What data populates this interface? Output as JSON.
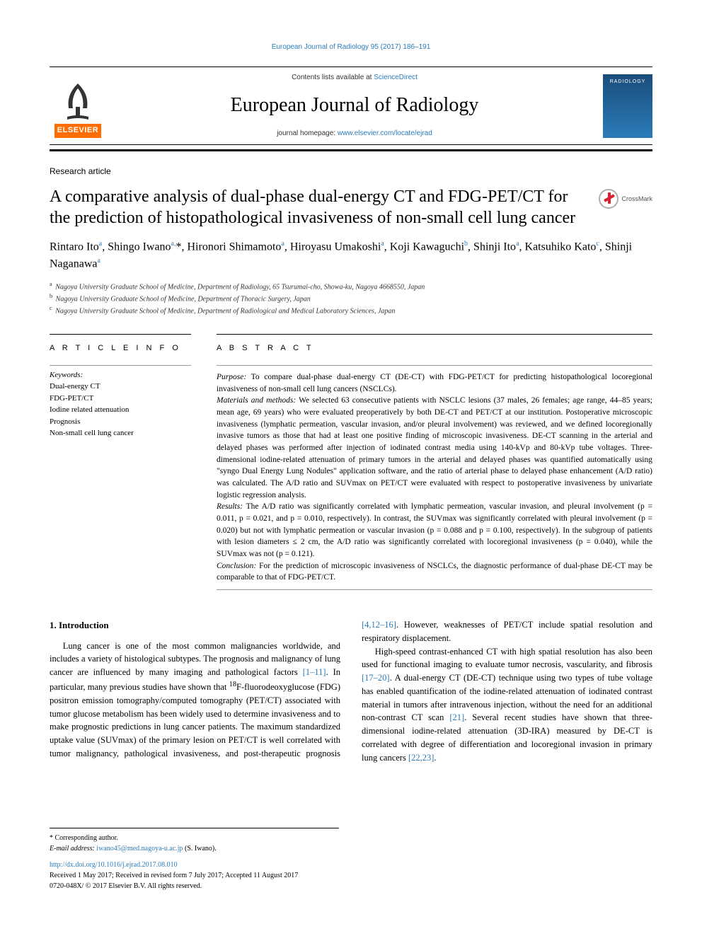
{
  "running_head": "European Journal of Radiology 95 (2017) 186–191",
  "masthead": {
    "contents_line_prefix": "Contents lists available at ",
    "contents_link": "ScienceDirect",
    "journal_name": "European Journal of Radiology",
    "homepage_prefix": "journal homepage: ",
    "homepage_link": "www.elsevier.com/locate/ejrad",
    "elsevier": "ELSEVIER",
    "cover_label": "RADIOLOGY"
  },
  "article_type": "Research article",
  "title": "A comparative analysis of dual-phase dual-energy CT and FDG-PET/CT for the prediction of histopathological invasiveness of non-small cell lung cancer",
  "crossmark_label": "CrossMark",
  "authors_html": "Rintaro Ito<sup>a</sup>, Shingo Iwano<sup>a,</sup>*, Hironori Shimamoto<sup>a</sup>, Hiroyasu Umakoshi<sup>a</sup>, Koji Kawaguchi<sup>b</sup>, Shinji Ito<sup>a</sup>, Katsuhiko Kato<sup>c</sup>, Shinji Naganawa<sup>a</sup>",
  "affiliations": {
    "a": "Nagoya University Graduate School of Medicine, Department of Radiology, 65 Tsurumai-cho, Showa-ku, Nagoya 4668550, Japan",
    "b": "Nagoya University Graduate School of Medicine, Department of Thoracic Surgery, Japan",
    "c": "Nagoya University Graduate School of Medicine, Department of Radiological and Medical Laboratory Sciences, Japan"
  },
  "article_info_heading": "A R T I C L E  I N F O",
  "keywords_label": "Keywords:",
  "keywords": [
    "Dual-energy CT",
    "FDG-PET/CT",
    "Iodine related attenuation",
    "Prognosis",
    "Non-small cell lung cancer"
  ],
  "abstract_heading": "A B S T R A C T",
  "abstract": {
    "purpose_label": "Purpose:",
    "purpose": " To compare dual-phase dual-energy CT (DE-CT) with FDG-PET/CT for predicting histopathological locoregional invasiveness of non-small cell lung cancers (NSCLCs).",
    "methods_label": "Materials and methods:",
    "methods": " We selected 63 consecutive patients with NSCLC lesions (37 males, 26 females; age range, 44–85 years; mean age, 69 years) who were evaluated preoperatively by both DE-CT and PET/CT at our institution. Postoperative microscopic invasiveness (lymphatic permeation, vascular invasion, and/or pleural involvement) was reviewed, and we defined locoregionally invasive tumors as those that had at least one positive finding of microscopic invasiveness. DE-CT scanning in the arterial and delayed phases was performed after injection of iodinated contrast media using 140-kVp and 80-kVp tube voltages. Three-dimensional iodine-related attenuation of primary tumors in the arterial and delayed phases was quantified automatically using \"syngo Dual Energy Lung Nodules\" application software, and the ratio of arterial phase to delayed phase enhancement (A/D ratio) was calculated. The A/D ratio and SUVmax on PET/CT were evaluated with respect to postoperative invasiveness by univariate logistic regression analysis.",
    "results_label": "Results:",
    "results": " The A/D ratio was significantly correlated with lymphatic permeation, vascular invasion, and pleural involvement (p = 0.011, p = 0.021, and p = 0.010, respectively). In contrast, the SUVmax was significantly correlated with pleural involvement (p = 0.020) but not with lymphatic permeation or vascular invasion (p = 0.088 and p = 0.100, respectively). In the subgroup of patients with lesion diameters ≤ 2 cm, the A/D ratio was significantly correlated with locoregional invasiveness (p = 0.040), while the SUVmax was not (p = 0.121).",
    "conclusion_label": "Conclusion:",
    "conclusion": " For the prediction of microscopic invasiveness of NSCLCs, the diagnostic performance of dual-phase DE-CT may be comparable to that of FDG-PET/CT."
  },
  "section1_heading": "1. Introduction",
  "para1a": "Lung cancer is one of the most common malignancies worldwide, and includes a variety of histological subtypes. The prognosis and malignancy of lung cancer are influenced by many imaging and pathological factors ",
  "ref1": "[1–11]",
  "para1b": ". In particular, many previous studies have shown that ",
  "fdg": "18",
  "para1c": "F-fluorodeoxyglucose (FDG) positron emission tomography/computed tomography (PET/CT) associated with tumor glucose metabolism has been widely used to determine invasiveness and to make prognostic predictions in lung cancer patients. The maximum standardized uptake value (SUVmax) of the primary lesion on PET/CT is well correlated with tumor malignancy, pathological invasiveness, ",
  "para2a": "and post-therapeutic prognosis ",
  "ref2": "[4,12–16]",
  "para2b": ". However, weaknesses of PET/CT include spatial resolution and respiratory displacement.",
  "para3a": "High-speed contrast-enhanced CT with high spatial resolution has also been used for functional imaging to evaluate tumor necrosis, vascularity, and fibrosis ",
  "ref3": "[17–20]",
  "para3b": ". A dual-energy CT (DE-CT) technique using two types of tube voltage has enabled quantification of the iodine-related attenuation of iodinated contrast material in tumors after intravenous injection, without the need for an additional non-contrast CT scan ",
  "ref4": "[21]",
  "para3c": ". Several recent studies have shown that three-dimensional iodine-related attenuation (3D-IRA) measured by DE-CT is correlated with degree of differentiation and locoregional invasion in primary lung cancers ",
  "ref5": "[22,23]",
  "para3d": ".",
  "footnotes": {
    "corresponding": "* Corresponding author.",
    "email_label": "E-mail address: ",
    "email": "iwano45@med.nagoya-u.ac.jp",
    "email_suffix": " (S. Iwano).",
    "doi": "http://dx.doi.org/10.1016/j.ejrad.2017.08.010",
    "received": "Received 1 May 2017; Received in revised form 7 July 2017; Accepted 11 August 2017",
    "copyright": "0720-048X/ © 2017 Elsevier B.V. All rights reserved."
  },
  "colors": {
    "link": "#2b7bb9",
    "elsevier_orange": "#ff6c00"
  }
}
